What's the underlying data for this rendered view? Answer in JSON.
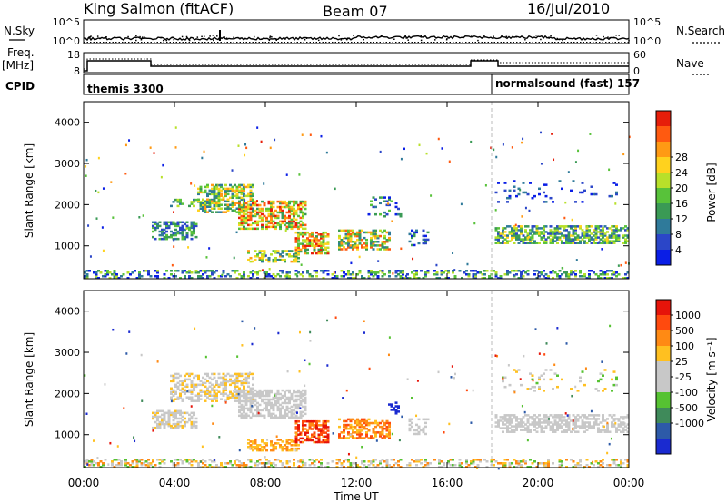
{
  "header": {
    "station": "King Salmon (fitACF)",
    "beam": "Beam 07",
    "date": "16/Jul/2010"
  },
  "left_labels": {
    "nsky": "N.Sky",
    "freq_line1": "Freq.",
    "freq_line2": "[MHz]",
    "cpid": "CPID"
  },
  "right_labels": {
    "nsearch": "N.Search",
    "nave": "Nave"
  },
  "noise_axis": {
    "left_ticks": [
      "10^5",
      "10^0"
    ],
    "right_ticks": [
      "10^5",
      "10^0"
    ]
  },
  "freq_axis": {
    "left_ticks": [
      "18",
      "8"
    ],
    "right_ticks": [
      "60",
      "0"
    ]
  },
  "cpid_segments": [
    {
      "label": "themis 3300",
      "start_hour": 0.0,
      "end_hour": 18.1
    },
    {
      "label": "normalsound (fast) 157",
      "start_hour": 18.1,
      "end_hour": 24.0
    }
  ],
  "chart_data": [
    {
      "type": "heatmap",
      "name": "power",
      "xlabel": "Time UT",
      "ylabel": "Slant Range [km]",
      "x_ticks": [
        "00:00",
        "04:00",
        "08:00",
        "12:00",
        "16:00",
        "20:00",
        "00:00"
      ],
      "x_range_hours": [
        0,
        24
      ],
      "y_ticks": [
        "1000",
        "2000",
        "3000",
        "4000"
      ],
      "ylim_km": [
        200,
        4500
      ],
      "colorbar_label": "Power [dB]",
      "colorbar_ticks": [
        "4",
        "8",
        "12",
        "16",
        "20",
        "24",
        "28"
      ],
      "colorbar_colors": [
        "#0a1ee6",
        "#2b46c8",
        "#2f7a9a",
        "#3a9a55",
        "#58c23a",
        "#b8e02a",
        "#ffd21e",
        "#ff9a14",
        "#ff5a10",
        "#e61e0a"
      ],
      "clusters": [
        {
          "h0": 3.0,
          "h1": 5.0,
          "r0": 1150,
          "r1": 1600,
          "density": 0.55,
          "val": [
            0.1,
            0.5
          ]
        },
        {
          "h0": 3.8,
          "h1": 6.0,
          "r0": 1950,
          "r1": 2150,
          "density": 0.35,
          "val": [
            0.2,
            0.6
          ]
        },
        {
          "h0": 5.0,
          "h1": 7.5,
          "r0": 1800,
          "r1": 2500,
          "density": 0.55,
          "val": [
            0.2,
            0.8
          ]
        },
        {
          "h0": 6.8,
          "h1": 9.8,
          "r0": 1400,
          "r1": 2100,
          "density": 0.6,
          "val": [
            0.3,
            1.0
          ]
        },
        {
          "h0": 7.2,
          "h1": 9.5,
          "r0": 600,
          "r1": 900,
          "density": 0.45,
          "val": [
            0.2,
            0.8
          ]
        },
        {
          "h0": 9.3,
          "h1": 10.8,
          "r0": 800,
          "r1": 1350,
          "density": 0.6,
          "val": [
            0.3,
            1.0
          ]
        },
        {
          "h0": 11.2,
          "h1": 13.5,
          "r0": 900,
          "r1": 1400,
          "density": 0.55,
          "val": [
            0.2,
            0.9
          ]
        },
        {
          "h0": 12.5,
          "h1": 14.0,
          "r0": 1700,
          "r1": 2200,
          "density": 0.2,
          "val": [
            0.0,
            0.5
          ]
        },
        {
          "h0": 14.3,
          "h1": 15.2,
          "r0": 1000,
          "r1": 1400,
          "density": 0.25,
          "val": [
            0.0,
            0.4
          ]
        },
        {
          "h0": 18.1,
          "h1": 24.0,
          "r0": 1050,
          "r1": 1500,
          "density": 0.55,
          "val": [
            0.15,
            0.65
          ]
        },
        {
          "h0": 18.1,
          "h1": 23.5,
          "r0": 2050,
          "r1": 2600,
          "density": 0.08,
          "val": [
            0.0,
            0.3
          ]
        },
        {
          "h0": 0.0,
          "h1": 24.0,
          "r0": 200,
          "r1": 420,
          "density": 0.35,
          "val": [
            0.0,
            0.6
          ]
        }
      ]
    },
    {
      "type": "heatmap",
      "name": "velocity",
      "xlabel": "Time UT",
      "ylabel": "Slant Range [km]",
      "x_ticks": [
        "00:00",
        "04:00",
        "08:00",
        "12:00",
        "16:00",
        "20:00",
        "00:00"
      ],
      "x_range_hours": [
        0,
        24
      ],
      "y_ticks": [
        "1000",
        "2000",
        "3000",
        "4000"
      ],
      "ylim_km": [
        200,
        4500
      ],
      "colorbar_label": "Velocity [m s⁻¹]",
      "colorbar_ticks": [
        "1000",
        "500",
        "100",
        "25",
        "-25",
        "-100",
        "-500",
        "-1000"
      ],
      "colorbar_colors": [
        "#1a2ad0",
        "#2d5aa8",
        "#3f8a5a",
        "#56c232",
        "#c8c8c8",
        "#c8c8c8",
        "#ffc020",
        "#ff8a14",
        "#ff4a0e",
        "#e6140a"
      ],
      "clusters": [
        {
          "h0": 3.0,
          "h1": 5.0,
          "r0": 1150,
          "r1": 1600,
          "density": 0.55,
          "val": [
            0.4,
            0.65
          ]
        },
        {
          "h0": 3.8,
          "h1": 7.5,
          "r0": 1800,
          "r1": 2500,
          "density": 0.45,
          "val": [
            0.45,
            0.7
          ]
        },
        {
          "h0": 6.8,
          "h1": 9.8,
          "r0": 1400,
          "r1": 2100,
          "density": 0.55,
          "val": [
            0.4,
            0.6
          ]
        },
        {
          "h0": 7.2,
          "h1": 9.5,
          "r0": 600,
          "r1": 900,
          "density": 0.45,
          "val": [
            0.6,
            0.8
          ]
        },
        {
          "h0": 9.3,
          "h1": 10.8,
          "r0": 800,
          "r1": 1350,
          "density": 0.6,
          "val": [
            0.75,
            1.0
          ]
        },
        {
          "h0": 11.2,
          "h1": 13.5,
          "r0": 900,
          "r1": 1400,
          "density": 0.55,
          "val": [
            0.65,
            0.85
          ]
        },
        {
          "h0": 13.4,
          "h1": 13.9,
          "r0": 1500,
          "r1": 1800,
          "density": 0.3,
          "val": [
            0.0,
            0.1
          ]
        },
        {
          "h0": 14.3,
          "h1": 15.2,
          "r0": 1000,
          "r1": 1400,
          "density": 0.25,
          "val": [
            0.4,
            0.6
          ]
        },
        {
          "h0": 18.1,
          "h1": 24.0,
          "r0": 1050,
          "r1": 1500,
          "density": 0.55,
          "val": [
            0.4,
            0.6
          ]
        },
        {
          "h0": 18.1,
          "h1": 23.5,
          "r0": 2050,
          "r1": 2600,
          "density": 0.08,
          "val": [
            0.3,
            0.7
          ]
        },
        {
          "h0": 0.0,
          "h1": 24.0,
          "r0": 200,
          "r1": 420,
          "density": 0.35,
          "val": [
            0.3,
            0.8
          ]
        }
      ]
    }
  ]
}
